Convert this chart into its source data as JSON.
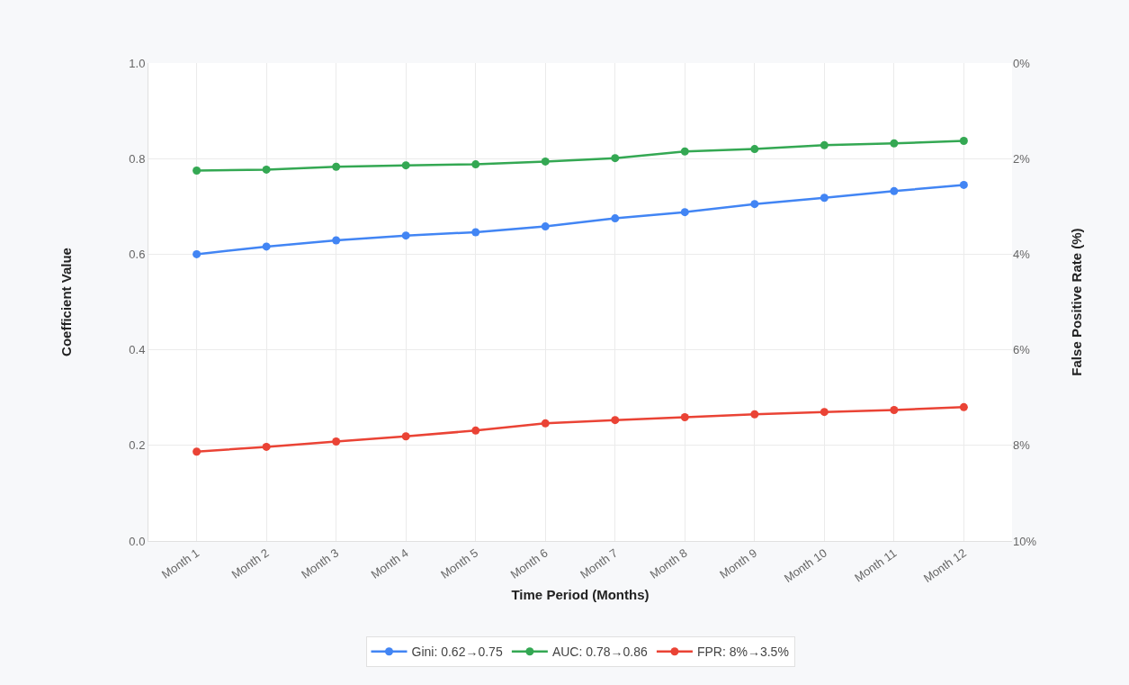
{
  "chart_data": {
    "type": "line",
    "xlabel": "Time Period (Months)",
    "ylabel": "Coefficient Value",
    "y2label": "False Positive Rate (%)",
    "categories": [
      "Month 1",
      "Month 2",
      "Month 3",
      "Month 4",
      "Month 5",
      "Month 6",
      "Month 7",
      "Month 8",
      "Month 9",
      "Month 10",
      "Month 11",
      "Month 12"
    ],
    "series": [
      {
        "name": "Gini: 0.62→0.75",
        "color": "#4285f4",
        "values": [
          0.6,
          0.616,
          0.629,
          0.639,
          0.646,
          0.658,
          0.675,
          0.688,
          0.705,
          0.718,
          0.732,
          0.745
        ]
      },
      {
        "name": "AUC: 0.78→0.86",
        "color": "#34a853",
        "values": [
          0.775,
          0.777,
          0.783,
          0.786,
          0.788,
          0.794,
          0.801,
          0.815,
          0.82,
          0.828,
          0.832,
          0.837
        ]
      },
      {
        "name": "FPR: 8%→3.5%",
        "color": "#ea4335",
        "axis": "y2",
        "values": [
          8.13,
          8.03,
          7.92,
          7.81,
          7.69,
          7.54,
          7.47,
          7.41,
          7.35,
          7.3,
          7.26,
          7.2
        ]
      }
    ],
    "ylim": [
      0,
      1
    ],
    "yticks": [
      {
        "value": 0,
        "label": "0.0"
      },
      0.2,
      0.4,
      0.6,
      0.8,
      {
        "value": 1,
        "label": "1.0"
      }
    ],
    "y2lim": [
      10,
      0
    ],
    "y2ticks": [
      {
        "value": 0,
        "label": "0%"
      },
      {
        "value": 2,
        "label": "2%"
      },
      {
        "value": 4,
        "label": "4%"
      },
      {
        "value": 6,
        "label": "6%"
      },
      {
        "value": 8,
        "label": "8%"
      },
      {
        "value": 10,
        "label": "10%"
      }
    ],
    "grid": true,
    "legend": "bottom",
    "marker": "circle",
    "line_style": "solid"
  }
}
